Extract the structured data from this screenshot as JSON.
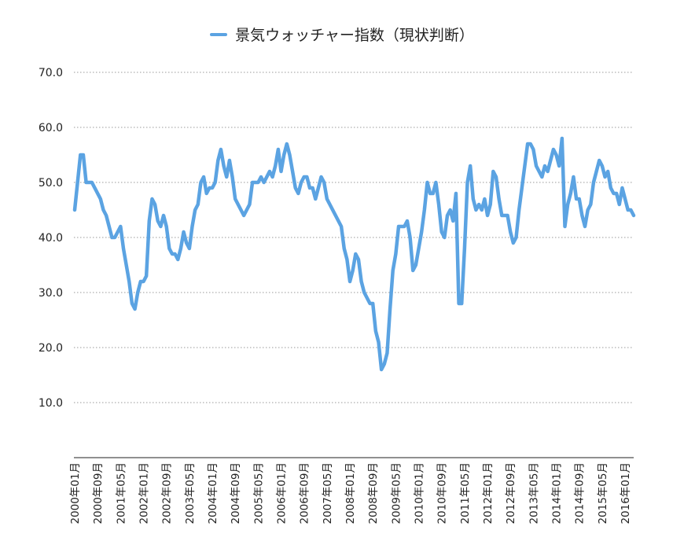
{
  "chart_data": {
    "type": "line",
    "title": "",
    "xlabel": "",
    "ylabel": "",
    "ylim": [
      0,
      70
    ],
    "yticks": [
      "10.0",
      "20.0",
      "30.0",
      "40.0",
      "50.0",
      "60.0",
      "70.0"
    ],
    "grid": "horizontal dotted",
    "legend_position": "top-center",
    "series_color": "#5BA3E2",
    "x_tick_labels": [
      "2000年01月",
      "2000年09月",
      "2001年05月",
      "2002年01月",
      "2002年09月",
      "2003年05月",
      "2004年01月",
      "2004年09月",
      "2005年05月",
      "2006年01月",
      "2006年09月",
      "2007年05月",
      "2008年01月",
      "2008年09月",
      "2009年05月",
      "2010年01月",
      "2010年09月",
      "2011年05月",
      "2012年01月",
      "2012年09月",
      "2013年05月",
      "2014年01月",
      "2014年09月",
      "2015年05月",
      "2016年01月"
    ],
    "x_start": "2000年01月",
    "x_end": "2016年03月",
    "series": [
      {
        "name": "景気ウォッチャー指数（現状判断）",
        "values": [
          45.0,
          50.0,
          55.0,
          55.0,
          50.0,
          50.0,
          50.0,
          49.0,
          48.0,
          47.0,
          45.0,
          44.0,
          42.0,
          40.0,
          40.0,
          41.0,
          42.0,
          38.0,
          35.0,
          32.0,
          28.0,
          27.0,
          30.0,
          32.0,
          32.0,
          33.0,
          43.0,
          47.0,
          46.0,
          43.0,
          42.0,
          44.0,
          42.0,
          38.0,
          37.0,
          37.0,
          36.0,
          38.0,
          41.0,
          39.0,
          38.0,
          42.0,
          45.0,
          46.0,
          50.0,
          51.0,
          48.0,
          49.0,
          49.0,
          50.0,
          54.0,
          56.0,
          53.0,
          51.0,
          54.0,
          51.0,
          47.0,
          46.0,
          45.0,
          44.0,
          45.0,
          46.0,
          50.0,
          50.0,
          50.0,
          51.0,
          50.0,
          51.0,
          52.0,
          51.0,
          53.0,
          56.0,
          52.0,
          55.0,
          57.0,
          55.0,
          52.0,
          49.0,
          48.0,
          50.0,
          51.0,
          51.0,
          49.0,
          49.0,
          47.0,
          49.0,
          51.0,
          50.0,
          47.0,
          46.0,
          45.0,
          44.0,
          43.0,
          42.0,
          38.0,
          36.0,
          32.0,
          34.0,
          37.0,
          36.0,
          32.0,
          30.0,
          29.0,
          28.0,
          28.0,
          23.0,
          21.0,
          16.0,
          17.0,
          19.0,
          27.0,
          34.0,
          37.0,
          42.0,
          42.0,
          42.0,
          43.0,
          40.0,
          34.0,
          35.0,
          38.0,
          41.0,
          45.0,
          50.0,
          48.0,
          48.0,
          50.0,
          46.0,
          41.0,
          40.0,
          44.0,
          45.0,
          43.0,
          48.0,
          28.0,
          28.0,
          38.0,
          50.0,
          53.0,
          47.0,
          45.0,
          46.0,
          45.0,
          47.0,
          44.0,
          46.0,
          52.0,
          51.0,
          47.0,
          44.0,
          44.0,
          44.0,
          41.0,
          39.0,
          40.0,
          45.0,
          49.0,
          53.0,
          57.0,
          57.0,
          56.0,
          53.0,
          52.0,
          51.0,
          53.0,
          52.0,
          54.0,
          56.0,
          55.0,
          53.0,
          58.0,
          42.0,
          46.0,
          48.0,
          51.0,
          47.0,
          47.0,
          44.0,
          42.0,
          45.0,
          46.0,
          50.0,
          52.0,
          54.0,
          53.0,
          51.0,
          52.0,
          49.0,
          48.0,
          48.0,
          46.0,
          49.0,
          47.0,
          45.0,
          45.0,
          44.0
        ]
      }
    ]
  },
  "legend": {
    "label": "景気ウォッチャー指数（現状判断）",
    "icon": "line-swatch"
  }
}
